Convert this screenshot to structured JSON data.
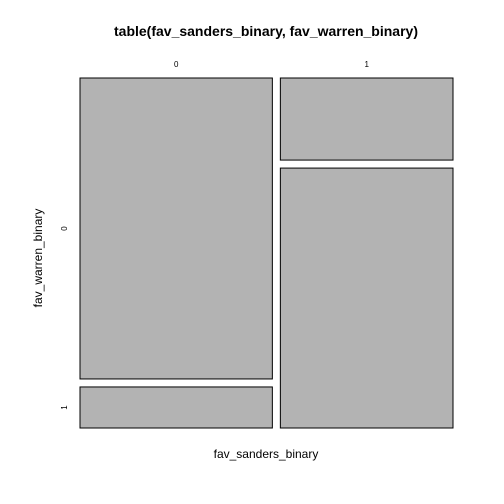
{
  "chart_data": {
    "type": "mosaic",
    "title": "table(fav_sanders_binary, fav_warren_binary)",
    "xlabel": "fav_sanders_binary",
    "ylabel": "fav_warren_binary",
    "x_categories": [
      "0",
      "1"
    ],
    "y_categories": [
      "0",
      "1"
    ],
    "x_proportions": [
      0.527,
      0.473
    ],
    "cells": [
      {
        "x": "0",
        "y": "0",
        "conditional_proportion": 0.88
      },
      {
        "x": "0",
        "y": "1",
        "conditional_proportion": 0.12
      },
      {
        "x": "1",
        "y": "0",
        "conditional_proportion": 0.24
      },
      {
        "x": "1",
        "y": "1",
        "conditional_proportion": 0.76
      }
    ],
    "tile_fill": "#b3b3b3",
    "tile_stroke": "#000000"
  }
}
